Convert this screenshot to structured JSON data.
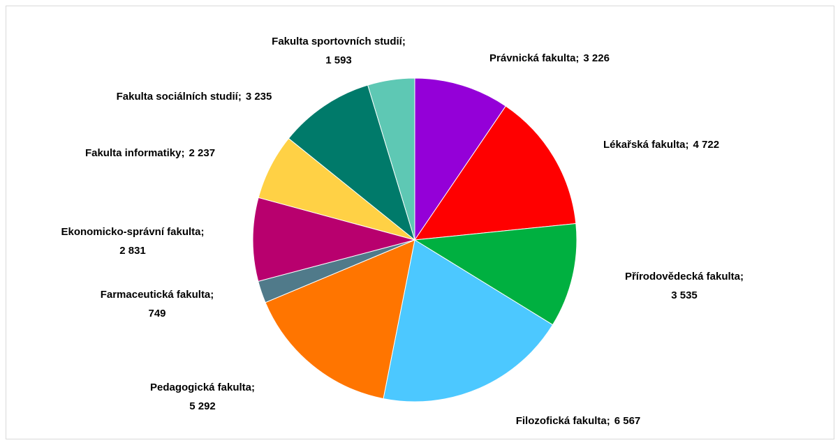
{
  "chart_data": {
    "type": "pie",
    "categories": [
      "Právnická fakulta",
      "Lékařská fakulta",
      "Přírodovědecká fakulta",
      "Filozofická fakulta",
      "Pedagogická fakulta",
      "Farmaceutická fakulta",
      "Ekonomicko-správní fakulta",
      "Fakulta informatiky",
      "Fakulta sociálních studií",
      "Fakulta sportovních studií"
    ],
    "values": [
      3226,
      4722,
      3535,
      6567,
      5292,
      749,
      2831,
      2237,
      3235,
      1593
    ],
    "value_labels": [
      "3 226",
      "4 722",
      "3 535",
      "6 567",
      "5 292",
      "749",
      "2 831",
      "2 237",
      "3 235",
      "1 593"
    ],
    "label_separator": ";",
    "colors": [
      "#9400d8",
      "#ff0000",
      "#00b040",
      "#4cc8ff",
      "#ff7500",
      "#507a8a",
      "#b8006e",
      "#ffd145",
      "#007a6a",
      "#5ec8b4"
    ]
  }
}
